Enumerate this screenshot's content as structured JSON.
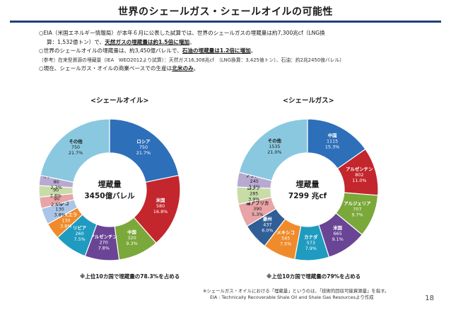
{
  "title": "世界のシェールガス・シェールオイルの可能性",
  "bullets": {
    "line1": "○EIA（米国エネルギー情報局）が本年６月に公表した試算では、世界のシェールガスの埋蔵量は約7,300兆cf（LNG換",
    "line2_pre": "算：1,532億トン）で、",
    "line2_hl": "天然ガスの埋蔵量は約1.5倍に増加",
    "line2_post": "。",
    "line3_pre": "○世界のシェールオイルの埋蔵量は、約3,450億バレルで、",
    "line3_hl": "石油の埋蔵量は1.2倍に増加",
    "line3_post": "。",
    "ref": "〔参考〕在来型資源の埋蔵量（IEA　WEO2012より試算）：天然ガス16,308兆cf　（LNG換算：3,425億トン）、石油：約2兆2450億バレル）",
    "line4_pre": "○現在、シェールガス・オイルの商業ベースでの生産は",
    "line4_hl": "北米のみ",
    "line4_post": "。"
  },
  "chart_data": [
    {
      "type": "pie",
      "title": "<シェールオイル>",
      "center_title": "埋蔵量",
      "center_value": "3450億バレル",
      "summary": "※上位10カ国で埋蔵量の78.3%を占める",
      "slices": [
        {
          "name": "ロシア",
          "value": "750",
          "pct": "21.7%",
          "color": "#2e6fba"
        },
        {
          "name": "米国",
          "value": "580",
          "pct": "16.8%",
          "color": "#c3262c"
        },
        {
          "name": "中国",
          "value": "320",
          "pct": "9.3%",
          "color": "#7aa83a"
        },
        {
          "name": "アルゼンチン",
          "value": "270",
          "pct": "7.8%",
          "color": "#6a4595"
        },
        {
          "name": "リビア",
          "value": "260",
          "pct": "7.5%",
          "color": "#1f9bc0"
        },
        {
          "name": "ベネズエラ",
          "value": "130",
          "pct": "3.8%",
          "color": "#f08b2b"
        },
        {
          "name": "メキシコ",
          "value": "130",
          "pct": "3.8%",
          "color": "#a9c6e8"
        },
        {
          "name": "パキスタン",
          "value": "90",
          "pct": "2.6%",
          "color": "#e8a4a6"
        },
        {
          "name": "カナダ",
          "value": "90",
          "pct": "2.6%",
          "color": "#c8dca8"
        },
        {
          "name": "インドネシア",
          "value": "80",
          "pct": "2.3%",
          "color": "#b8a9d0"
        },
        {
          "name": "その他",
          "value": "750",
          "pct": "21.7%",
          "color": "#8ac8e0"
        }
      ]
    },
    {
      "type": "pie",
      "title": "<シェールガス>",
      "center_title": "埋蔵量",
      "center_value": "7299 兆cf",
      "summary": "※上位10カ国で埋蔵量の79%を占める",
      "slices": [
        {
          "name": "中国",
          "value": "1115",
          "pct": "15.3%",
          "color": "#2e6fba"
        },
        {
          "name": "アルゼンチン",
          "value": "802",
          "pct": "11.0%",
          "color": "#c3262c"
        },
        {
          "name": "アルジェリア",
          "value": "707",
          "pct": "9.7%",
          "color": "#7aa83a"
        },
        {
          "name": "米国",
          "value": "665",
          "pct": "9.1%",
          "color": "#6a4595"
        },
        {
          "name": "カナダ",
          "value": "573",
          "pct": "7.9%",
          "color": "#1f9bc0"
        },
        {
          "name": "メキシコ",
          "value": "545",
          "pct": "7.5%",
          "color": "#f08b2b"
        },
        {
          "name": "豪州",
          "value": "437",
          "pct": "6.0%",
          "color": "#2f5f96"
        },
        {
          "name": "南アフリカ",
          "value": "390",
          "pct": "5.3%",
          "color": "#e8a4a6"
        },
        {
          "name": "ロシア",
          "value": "285",
          "pct": "3.9%",
          "color": "#c8dca8"
        },
        {
          "name": "ブラジル",
          "value": "245",
          "pct": "3.4%",
          "color": "#b8a9d0"
        },
        {
          "name": "その他",
          "value": "1535",
          "pct": "21.0%",
          "color": "#8ac8e0"
        }
      ]
    }
  ],
  "footnote": {
    "line1": "※シェールガス・オイルにおける「埋蔵量」というのは、「技術的回収可能資源量」を指す。",
    "line2": "EIA : Technically Recoverable Shale Oil and Shale Gas Resourcesより作成"
  },
  "page_number": "18"
}
